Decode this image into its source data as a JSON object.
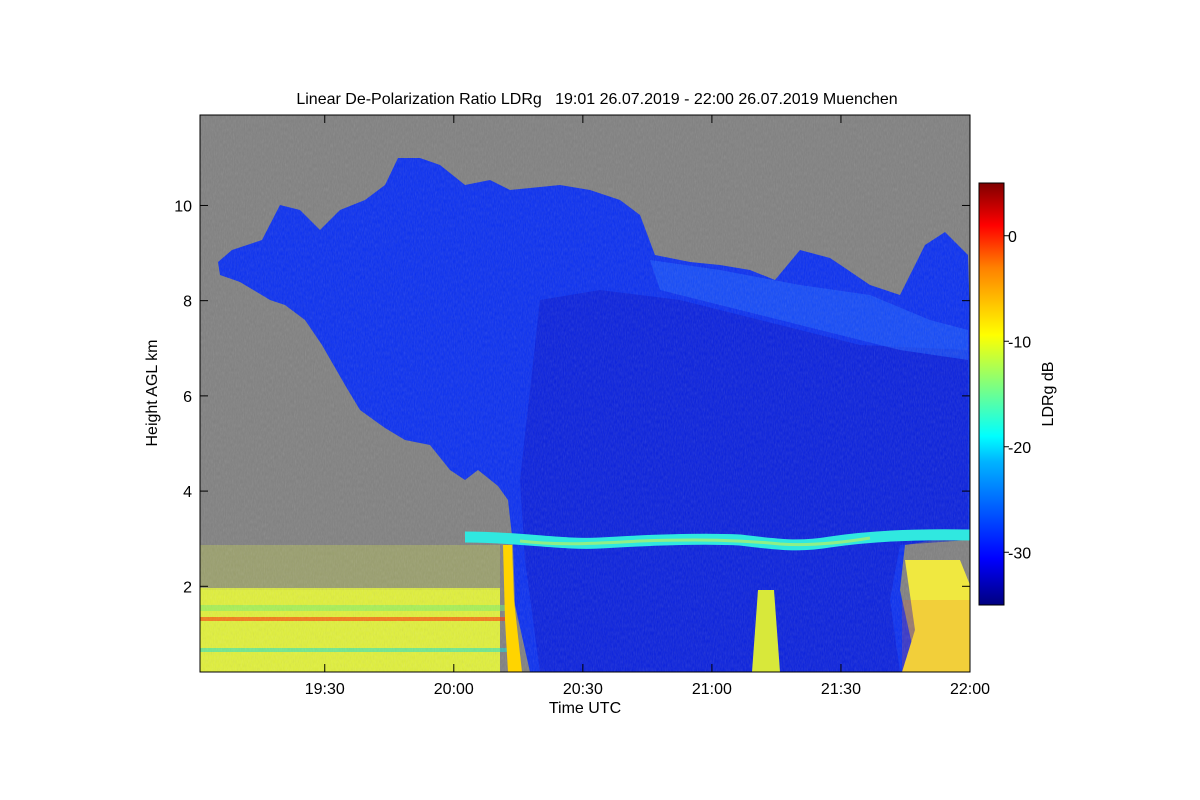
{
  "chart_data": {
    "type": "heatmap",
    "title": "Linear De-Polarization Ratio LDRg   19:01 26.07.2019 - 22:00 26.07.2019 Muenchen",
    "xlabel": "Time UTC",
    "ylabel": "Height AGL km",
    "colorbar_label": "LDRg dB",
    "xlim": [
      "19:01",
      "22:00"
    ],
    "ylim": [
      0.2,
      11.9
    ],
    "x_ticks": [
      {
        "value": 29,
        "label": "19:30"
      },
      {
        "value": 59,
        "label": "20:00"
      },
      {
        "value": 89,
        "label": "20:30"
      },
      {
        "value": 119,
        "label": "21:00"
      },
      {
        "value": 149,
        "label": "21:30"
      },
      {
        "value": 179,
        "label": "22:00"
      }
    ],
    "y_ticks": [
      {
        "value": 2,
        "label": "2"
      },
      {
        "value": 4,
        "label": "4"
      },
      {
        "value": 6,
        "label": "6"
      },
      {
        "value": 8,
        "label": "8"
      },
      {
        "value": 10,
        "label": "10"
      }
    ],
    "colorbar_range": [
      -35,
      5
    ],
    "colorbar_ticks": [
      {
        "value": 0,
        "label": "0"
      },
      {
        "value": -10,
        "label": "-10"
      },
      {
        "value": -20,
        "label": "-20"
      },
      {
        "value": -30,
        "label": "-30"
      }
    ],
    "missing_color": "#808080",
    "colormap": [
      "#00007f",
      "#0000ff",
      "#007fff",
      "#00ffff",
      "#7fff7f",
      "#ffff00",
      "#ff7f00",
      "#ff0000",
      "#7f0000"
    ]
  }
}
